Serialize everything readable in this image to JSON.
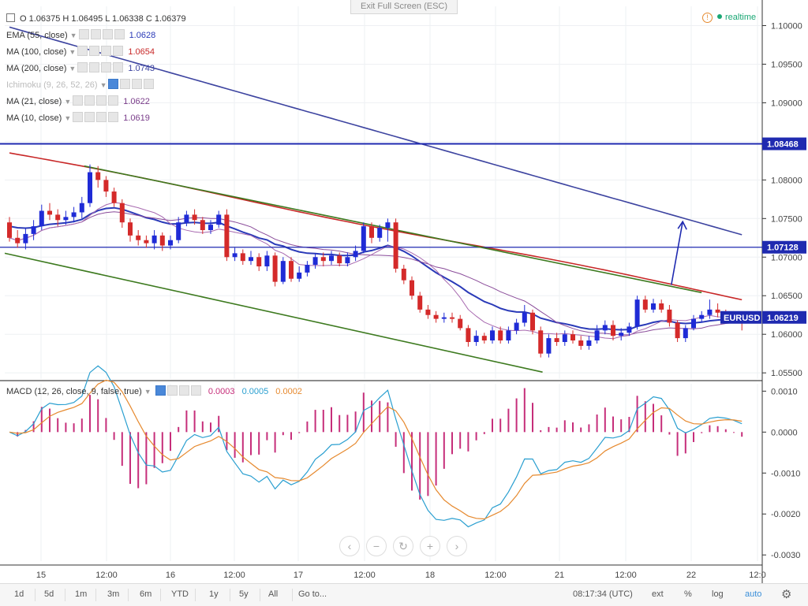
{
  "exit_label": "Exit Full Screen (ESC)",
  "ohlc": {
    "text": "O 1.06375 H 1.06495 L 1.06338 C 1.06379"
  },
  "realtime": "realtime",
  "indicators": [
    {
      "label": "EMA (55, close)",
      "value": "1.0628",
      "color": "#2a3ab8"
    },
    {
      "label": "MA (100, close)",
      "value": "1.0654",
      "color": "#c82828"
    },
    {
      "label": "MA (200, close)",
      "value": "1.0743",
      "color": "#3d44a0"
    },
    {
      "label": "Ichimoku (9, 26, 52, 26)",
      "value": "",
      "color": "#bbbbbb"
    },
    {
      "label": "MA (21, close)",
      "value": "1.0622",
      "color": "#7a3d8a"
    },
    {
      "label": "MA (10, close)",
      "value": "1.0619",
      "color": "#7a3d8a"
    }
  ],
  "macd_legend": {
    "label": "MACD (12, 26, close, 9, false, true)",
    "v1": "0.0003",
    "v2": "0.0005",
    "v3": "0.0002"
  },
  "footer": {
    "ranges": [
      "1d",
      "5d",
      "1m",
      "3m",
      "6m",
      "YTD",
      "1y",
      "5y",
      "All"
    ],
    "goto": "Go to...",
    "time": "08:17:34 (UTC)",
    "ext": "ext",
    "pct": "%",
    "log": "log",
    "auto": "auto"
  },
  "chart_data": {
    "type": "candlestick",
    "symbol": "EURUSD",
    "price_axis": {
      "ticks": [
        "1.10000",
        "1.09500",
        "1.09000",
        "1.08500",
        "1.08000",
        "1.07500",
        "1.07000",
        "1.06500",
        "1.06000",
        "1.05500"
      ],
      "range": [
        1.0542,
        1.1025
      ]
    },
    "price_badges": [
      {
        "label": "1.08468",
        "value": 1.08468
      },
      {
        "label": "1.07128",
        "value": 1.07128
      },
      {
        "label": "1.06219",
        "value": 1.06219
      }
    ],
    "symbol_badge": "EURUSD",
    "horizontal_lines": [
      1.08468,
      1.07128
    ],
    "channel_upper": [
      [
        0.105,
        1.0818
      ],
      [
        0.92,
        1.0654
      ]
    ],
    "channel_lower": [
      [
        0.0,
        1.0705
      ],
      [
        0.71,
        1.0551
      ]
    ],
    "arrow": {
      "from": [
        0.88,
        1.0664
      ],
      "to": [
        0.895,
        1.0746
      ]
    },
    "candles": [
      [
        1.0745,
        1.0725,
        1.0752,
        1.072
      ],
      [
        1.0725,
        1.0718,
        1.0735,
        1.0712
      ],
      [
        1.0718,
        1.073,
        1.0738,
        1.071
      ],
      [
        1.073,
        1.074,
        1.0748,
        1.0722
      ],
      [
        1.074,
        1.076,
        1.0768,
        1.0735
      ],
      [
        1.076,
        1.0755,
        1.077,
        1.0748
      ],
      [
        1.0755,
        1.0748,
        1.0762,
        1.074
      ],
      [
        1.0748,
        1.0752,
        1.076,
        1.0742
      ],
      [
        1.0752,
        1.0758,
        1.0765,
        1.0745
      ],
      [
        1.0758,
        1.077,
        1.0778,
        1.075
      ],
      [
        1.077,
        1.081,
        1.082,
        1.0765
      ],
      [
        1.081,
        1.08,
        1.0818,
        1.079
      ],
      [
        1.08,
        1.0785,
        1.0805,
        1.0778
      ],
      [
        1.0785,
        1.077,
        1.079,
        1.0765
      ],
      [
        1.077,
        1.0745,
        1.0775,
        1.0738
      ],
      [
        1.0745,
        1.0728,
        1.075,
        1.072
      ],
      [
        1.0728,
        1.0722,
        1.0735,
        1.0715
      ],
      [
        1.0722,
        1.0718,
        1.0728,
        1.0712
      ],
      [
        1.0718,
        1.0728,
        1.0735,
        1.071
      ],
      [
        1.0728,
        1.0715,
        1.0732,
        1.0708
      ],
      [
        1.0715,
        1.0722,
        1.0728,
        1.071
      ],
      [
        1.0722,
        1.0745,
        1.0752,
        1.0718
      ],
      [
        1.0745,
        1.0755,
        1.076,
        1.074
      ],
      [
        1.0755,
        1.0748,
        1.0762,
        1.0742
      ],
      [
        1.0748,
        1.0735,
        1.0752,
        1.073
      ],
      [
        1.0735,
        1.0742,
        1.0748,
        1.073
      ],
      [
        1.0742,
        1.0755,
        1.076,
        1.0738
      ],
      [
        1.0755,
        1.07,
        1.0762,
        1.0695
      ],
      [
        1.07,
        1.0705,
        1.0712,
        1.0695
      ],
      [
        1.0705,
        1.0695,
        1.071,
        1.069
      ],
      [
        1.0695,
        1.07,
        1.0708,
        1.069
      ],
      [
        1.07,
        1.0688,
        1.0705,
        1.0682
      ],
      [
        1.0688,
        1.0702,
        1.0708,
        1.0682
      ],
      [
        1.0702,
        1.0668,
        1.0706,
        1.0662
      ],
      [
        1.0668,
        1.0695,
        1.07,
        1.0665
      ],
      [
        1.0695,
        1.0672,
        1.07,
        1.0668
      ],
      [
        1.0672,
        1.068,
        1.0688,
        1.0668
      ],
      [
        1.068,
        1.069,
        1.0695,
        1.0675
      ],
      [
        1.069,
        1.07,
        1.0705,
        1.0685
      ],
      [
        1.07,
        1.0695,
        1.0706,
        1.0688
      ],
      [
        1.0695,
        1.0702,
        1.0708,
        1.069
      ],
      [
        1.0702,
        1.0692,
        1.0706,
        1.0688
      ],
      [
        1.0692,
        1.07,
        1.0706,
        1.0688
      ],
      [
        1.07,
        1.0708,
        1.0715,
        1.0695
      ],
      [
        1.0708,
        1.074,
        1.0745,
        1.0705
      ],
      [
        1.074,
        1.0725,
        1.0745,
        1.0718
      ],
      [
        1.0725,
        1.0738,
        1.0742,
        1.072
      ],
      [
        1.0738,
        1.0745,
        1.075,
        1.072
      ],
      [
        1.0745,
        1.0685,
        1.075,
        1.068
      ],
      [
        1.0685,
        1.067,
        1.069,
        1.0665
      ],
      [
        1.067,
        1.065,
        1.0675,
        1.0645
      ],
      [
        1.065,
        1.0632,
        1.0655,
        1.0628
      ],
      [
        1.0632,
        1.0625,
        1.0638,
        1.062
      ],
      [
        1.0625,
        1.062,
        1.063,
        1.0615
      ],
      [
        1.062,
        1.0622,
        1.0628,
        1.0615
      ],
      [
        1.0622,
        1.062,
        1.0628,
        1.0615
      ],
      [
        1.062,
        1.0608,
        1.0625,
        1.0605
      ],
      [
        1.0608,
        1.059,
        1.0612,
        1.0584
      ],
      [
        1.059,
        1.0598,
        1.0605,
        1.0585
      ],
      [
        1.0598,
        1.0592,
        1.0602,
        1.0588
      ],
      [
        1.0592,
        1.0605,
        1.061,
        1.0588
      ],
      [
        1.0605,
        1.0592,
        1.061,
        1.0588
      ],
      [
        1.0592,
        1.0605,
        1.061,
        1.0588
      ],
      [
        1.0605,
        1.0615,
        1.062,
        1.06
      ],
      [
        1.0615,
        1.0628,
        1.0638,
        1.061
      ],
      [
        1.0628,
        1.0605,
        1.0632,
        1.06
      ],
      [
        1.0605,
        1.0575,
        1.061,
        1.057
      ],
      [
        1.0575,
        1.0595,
        1.06,
        1.057
      ],
      [
        1.0595,
        1.059,
        1.0602,
        1.0585
      ],
      [
        1.059,
        1.06,
        1.0605,
        1.0585
      ],
      [
        1.06,
        1.0592,
        1.0605,
        1.0588
      ],
      [
        1.0592,
        1.0585,
        1.0598,
        1.058
      ],
      [
        1.0585,
        1.0592,
        1.0598,
        1.058
      ],
      [
        1.0592,
        1.0605,
        1.0612,
        1.0588
      ],
      [
        1.0605,
        1.0612,
        1.0618,
        1.06
      ],
      [
        1.0612,
        1.0598,
        1.0618,
        1.0592
      ],
      [
        1.0598,
        1.0602,
        1.0608,
        1.0592
      ],
      [
        1.0602,
        1.061,
        1.0615,
        1.0598
      ],
      [
        1.061,
        1.0645,
        1.065,
        1.0606
      ],
      [
        1.0645,
        1.0632,
        1.065,
        1.0628
      ],
      [
        1.0632,
        1.064,
        1.0646,
        1.0628
      ],
      [
        1.064,
        1.0632,
        1.0645,
        1.0628
      ],
      [
        1.0632,
        1.0615,
        1.0638,
        1.061
      ],
      [
        1.0615,
        1.0595,
        1.0618,
        1.059
      ],
      [
        1.0595,
        1.0608,
        1.0612,
        1.059
      ],
      [
        1.0608,
        1.062,
        1.0625,
        1.0605
      ],
      [
        1.062,
        1.0625,
        1.063,
        1.0615
      ],
      [
        1.0625,
        1.0632,
        1.0645,
        1.062
      ],
      [
        1.0632,
        1.0628,
        1.064,
        1.0622
      ],
      [
        1.0628,
        1.0626,
        1.0632,
        1.0622
      ],
      [
        1.0626,
        1.0624,
        1.063,
        1.062
      ],
      [
        1.0624,
        1.0621,
        1.0628,
        1.0605
      ]
    ],
    "time_ticks": [
      "15",
      "12:00",
      "16",
      "12:00",
      "17",
      "12:00",
      "18",
      "12:00",
      "21",
      "12:00",
      "22",
      "12:0"
    ],
    "macd_axis": {
      "ticks": [
        "0.0010",
        "0.0000",
        "-0.0010",
        "-0.0020",
        "-0.0030"
      ],
      "range": [
        -0.00315,
        0.00118
      ]
    }
  }
}
